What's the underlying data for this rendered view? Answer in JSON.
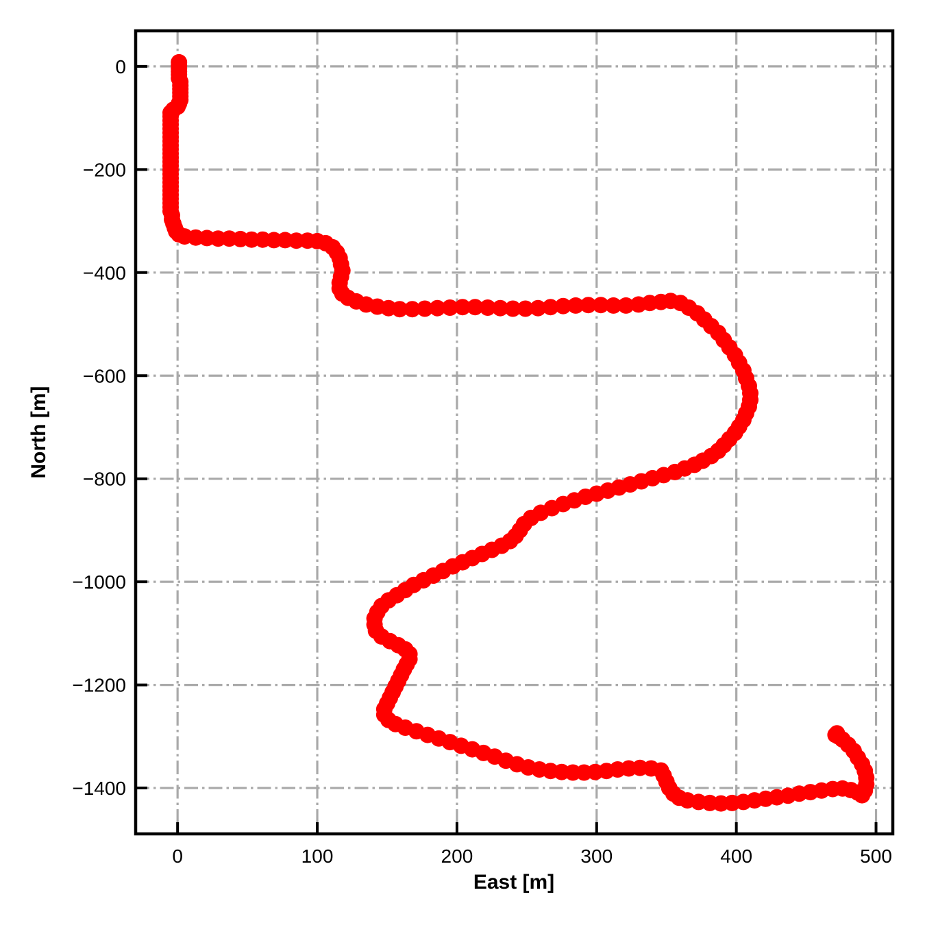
{
  "chart_data": {
    "type": "scatter",
    "title": "",
    "xlabel": "East [m]",
    "ylabel": "North [m]",
    "xlim": [
      -30,
      512
    ],
    "ylim": [
      -1489,
      69
    ],
    "xticks": [
      0,
      100,
      200,
      300,
      400,
      500
    ],
    "yticks": [
      0,
      -200,
      -400,
      -600,
      -800,
      -1000,
      -1200,
      -1400
    ],
    "grid": {
      "on": true,
      "style": "dash-dot",
      "color": "#a9a9a9"
    },
    "legend": {
      "visible": false
    },
    "series": [
      {
        "name": "trajectory",
        "color": "#ff0000",
        "marker": "circle",
        "marker_radius": 12,
        "line_width": 15,
        "points": [
          [
            1,
            8
          ],
          [
            1,
            2
          ],
          [
            1,
            -4
          ],
          [
            1,
            -10
          ],
          [
            1,
            -16
          ],
          [
            1,
            -23
          ],
          [
            2,
            -30
          ],
          [
            2,
            -37
          ],
          [
            2,
            -44
          ],
          [
            2,
            -51
          ],
          [
            2,
            -58
          ],
          [
            2,
            -65
          ],
          [
            1,
            -72
          ],
          [
            0,
            -78
          ],
          [
            -3,
            -84
          ],
          [
            -5,
            -90
          ],
          [
            -5,
            -97
          ],
          [
            -5,
            -105
          ],
          [
            -5,
            -113
          ],
          [
            -5,
            -121
          ],
          [
            -5,
            -129
          ],
          [
            -5,
            -137
          ],
          [
            -5,
            -145
          ],
          [
            -5,
            -153
          ],
          [
            -5,
            -161
          ],
          [
            -5,
            -169
          ],
          [
            -5,
            -177
          ],
          [
            -5,
            -185
          ],
          [
            -5,
            -193
          ],
          [
            -5,
            -201
          ],
          [
            -5,
            -209
          ],
          [
            -5,
            -217
          ],
          [
            -5,
            -225
          ],
          [
            -5,
            -233
          ],
          [
            -5,
            -241
          ],
          [
            -5,
            -249
          ],
          [
            -5,
            -257
          ],
          [
            -5,
            -265
          ],
          [
            -5,
            -273
          ],
          [
            -5,
            -281
          ],
          [
            -4,
            -289
          ],
          [
            -4,
            -297
          ],
          [
            -3,
            -305
          ],
          [
            -2,
            -313
          ],
          [
            -1,
            -320
          ],
          [
            1,
            -326
          ],
          [
            5,
            -330
          ],
          [
            13,
            -332
          ],
          [
            21,
            -333
          ],
          [
            29,
            -334
          ],
          [
            37,
            -334
          ],
          [
            45,
            -335
          ],
          [
            53,
            -336
          ],
          [
            61,
            -336
          ],
          [
            69,
            -337
          ],
          [
            77,
            -337
          ],
          [
            85,
            -338
          ],
          [
            93,
            -338
          ],
          [
            100,
            -339
          ],
          [
            106,
            -343
          ],
          [
            111,
            -351
          ],
          [
            114,
            -361
          ],
          [
            116,
            -372
          ],
          [
            117,
            -384
          ],
          [
            118,
            -396
          ],
          [
            117,
            -408
          ],
          [
            116,
            -420
          ],
          [
            116,
            -431
          ],
          [
            118,
            -441
          ],
          [
            122,
            -449
          ],
          [
            128,
            -456
          ],
          [
            135,
            -462
          ],
          [
            143,
            -466
          ],
          [
            151,
            -469
          ],
          [
            159,
            -471
          ],
          [
            168,
            -471
          ],
          [
            177,
            -470
          ],
          [
            186,
            -469
          ],
          [
            195,
            -468
          ],
          [
            204,
            -467
          ],
          [
            213,
            -467
          ],
          [
            222,
            -468
          ],
          [
            231,
            -469
          ],
          [
            240,
            -470
          ],
          [
            249,
            -470
          ],
          [
            258,
            -469
          ],
          [
            267,
            -467
          ],
          [
            276,
            -465
          ],
          [
            285,
            -464
          ],
          [
            294,
            -463
          ],
          [
            303,
            -463
          ],
          [
            312,
            -464
          ],
          [
            321,
            -464
          ],
          [
            330,
            -462
          ],
          [
            338,
            -459
          ],
          [
            346,
            -457
          ],
          [
            353,
            -455
          ],
          [
            360,
            -459
          ],
          [
            366,
            -468
          ],
          [
            372,
            -479
          ],
          [
            377,
            -491
          ],
          [
            382,
            -504
          ],
          [
            387,
            -517
          ],
          [
            391,
            -531
          ],
          [
            395,
            -545
          ],
          [
            399,
            -560
          ],
          [
            402,
            -575
          ],
          [
            405,
            -590
          ],
          [
            407,
            -605
          ],
          [
            409,
            -620
          ],
          [
            410,
            -634
          ],
          [
            410,
            -647
          ],
          [
            409,
            -660
          ],
          [
            407,
            -673
          ],
          [
            405,
            -686
          ],
          [
            402,
            -699
          ],
          [
            399,
            -711
          ],
          [
            395,
            -723
          ],
          [
            391,
            -735
          ],
          [
            387,
            -746
          ],
          [
            382,
            -756
          ],
          [
            376,
            -765
          ],
          [
            370,
            -773
          ],
          [
            363,
            -780
          ],
          [
            356,
            -787
          ],
          [
            348,
            -793
          ],
          [
            340,
            -799
          ],
          [
            332,
            -805
          ],
          [
            324,
            -811
          ],
          [
            316,
            -817
          ],
          [
            308,
            -823
          ],
          [
            300,
            -829
          ],
          [
            292,
            -835
          ],
          [
            284,
            -842
          ],
          [
            276,
            -849
          ],
          [
            268,
            -857
          ],
          [
            260,
            -866
          ],
          [
            253,
            -876
          ],
          [
            248,
            -888
          ],
          [
            245,
            -900
          ],
          [
            242,
            -911
          ],
          [
            238,
            -921
          ],
          [
            232,
            -930
          ],
          [
            225,
            -938
          ],
          [
            218,
            -946
          ],
          [
            211,
            -954
          ],
          [
            204,
            -962
          ],
          [
            197,
            -970
          ],
          [
            190,
            -979
          ],
          [
            183,
            -988
          ],
          [
            176,
            -997
          ],
          [
            169,
            -1006
          ],
          [
            163,
            -1016
          ],
          [
            157,
            -1026
          ],
          [
            151,
            -1036
          ],
          [
            146,
            -1047
          ],
          [
            143,
            -1059
          ],
          [
            141,
            -1071
          ],
          [
            141,
            -1083
          ],
          [
            142,
            -1095
          ],
          [
            146,
            -1106
          ],
          [
            152,
            -1115
          ],
          [
            158,
            -1123
          ],
          [
            163,
            -1131
          ],
          [
            166,
            -1140
          ],
          [
            166,
            -1150
          ],
          [
            164,
            -1160
          ],
          [
            162,
            -1170
          ],
          [
            160,
            -1181
          ],
          [
            158,
            -1192
          ],
          [
            156,
            -1203
          ],
          [
            154,
            -1214
          ],
          [
            152,
            -1225
          ],
          [
            150,
            -1236
          ],
          [
            148,
            -1247
          ],
          [
            148,
            -1258
          ],
          [
            151,
            -1268
          ],
          [
            156,
            -1276
          ],
          [
            163,
            -1283
          ],
          [
            171,
            -1290
          ],
          [
            179,
            -1297
          ],
          [
            187,
            -1304
          ],
          [
            195,
            -1311
          ],
          [
            203,
            -1318
          ],
          [
            211,
            -1325
          ],
          [
            219,
            -1332
          ],
          [
            227,
            -1339
          ],
          [
            235,
            -1347
          ],
          [
            243,
            -1354
          ],
          [
            251,
            -1360
          ],
          [
            259,
            -1364
          ],
          [
            267,
            -1367
          ],
          [
            275,
            -1369
          ],
          [
            283,
            -1370
          ],
          [
            291,
            -1370
          ],
          [
            299,
            -1369
          ],
          [
            307,
            -1367
          ],
          [
            315,
            -1364
          ],
          [
            323,
            -1362
          ],
          [
            331,
            -1361
          ],
          [
            339,
            -1362
          ],
          [
            346,
            -1366
          ],
          [
            348,
            -1376
          ],
          [
            350,
            -1388
          ],
          [
            352,
            -1400
          ],
          [
            355,
            -1411
          ],
          [
            359,
            -1419
          ],
          [
            365,
            -1424
          ],
          [
            373,
            -1427
          ],
          [
            381,
            -1429
          ],
          [
            389,
            -1430
          ],
          [
            397,
            -1429
          ],
          [
            405,
            -1427
          ],
          [
            413,
            -1424
          ],
          [
            421,
            -1421
          ],
          [
            429,
            -1418
          ],
          [
            437,
            -1415
          ],
          [
            445,
            -1411
          ],
          [
            453,
            -1408
          ],
          [
            461,
            -1405
          ],
          [
            469,
            -1402
          ],
          [
            476,
            -1401
          ],
          [
            482,
            -1404
          ],
          [
            487,
            -1409
          ],
          [
            490,
            -1414
          ],
          [
            492,
            -1405
          ],
          [
            493,
            -1393
          ],
          [
            493,
            -1380
          ],
          [
            492,
            -1367
          ],
          [
            490,
            -1354
          ],
          [
            487,
            -1341
          ],
          [
            484,
            -1328
          ],
          [
            480,
            -1316
          ],
          [
            476,
            -1306
          ],
          [
            473,
            -1300
          ],
          [
            471,
            -1297
          ],
          [
            472,
            -1294
          ]
        ]
      }
    ]
  }
}
